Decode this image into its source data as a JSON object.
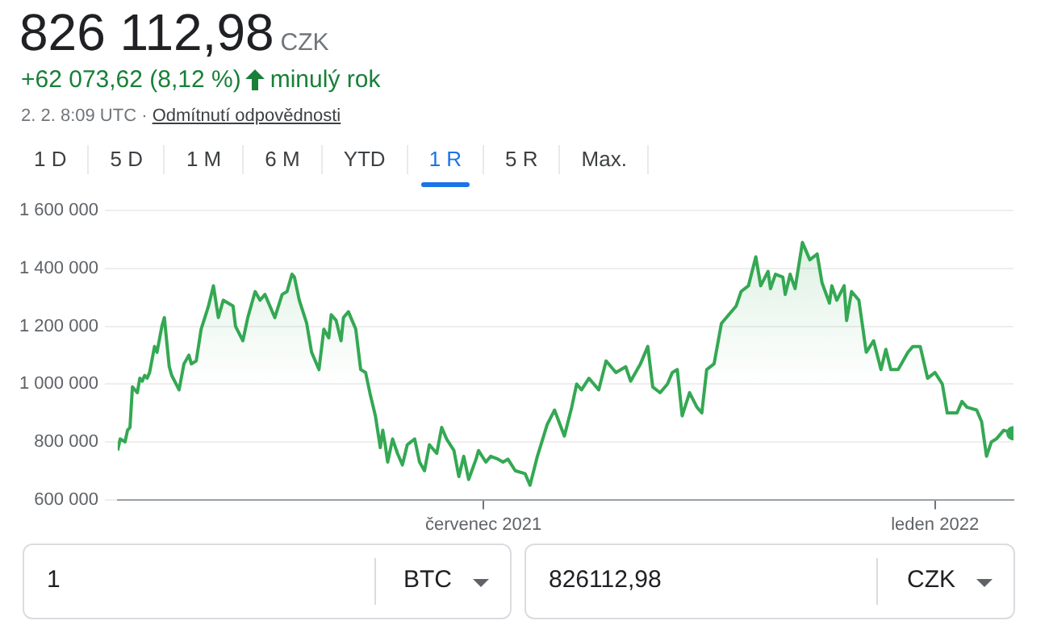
{
  "chart_data": {
    "type": "area",
    "title": "826 112,98",
    "subtitle": "+62 073,62 (8,12 %)",
    "annotations": [
      "CZK",
      "minulý rok",
      "2. 2. 8:09 UTC ·",
      "Odmítnutí odpovědnosti",
      "1 D",
      "5 D",
      "1 M",
      "6 M",
      "YTD",
      "1 R",
      "5 R",
      "Max.",
      "1",
      "BTC",
      "826112,98",
      "CZK"
    ],
    "x": [
      "2021-02-02",
      "2021-02-03",
      "2021-02-05",
      "2021-02-06",
      "2021-02-07",
      "2021-02-08",
      "2021-02-10",
      "2021-02-11",
      "2021-02-12",
      "2021-02-13",
      "2021-02-14",
      "2021-02-15",
      "2021-02-17",
      "2021-02-18",
      "2021-02-20",
      "2021-02-21",
      "2021-02-23",
      "2021-02-24",
      "2021-02-27",
      "2021-03-01",
      "2021-03-03",
      "2021-03-04",
      "2021-03-06",
      "2021-03-08",
      "2021-03-11",
      "2021-03-13",
      "2021-03-15",
      "2021-03-17",
      "2021-03-21",
      "2021-03-22",
      "2021-03-25",
      "2021-03-27",
      "2021-03-30",
      "2021-04-01",
      "2021-04-03",
      "2021-04-07",
      "2021-04-10",
      "2021-04-12",
      "2021-04-14",
      "2021-04-15",
      "2021-04-17",
      "2021-04-20",
      "2021-04-22",
      "2021-04-25",
      "2021-04-27",
      "2021-04-29",
      "2021-04-30",
      "2021-05-02",
      "2021-05-04",
      "2021-05-05",
      "2021-05-07",
      "2021-05-10",
      "2021-05-12",
      "2021-05-14",
      "2021-05-16",
      "2021-05-18",
      "2021-05-20",
      "2021-05-21",
      "2021-05-22",
      "2021-05-23",
      "2021-05-25",
      "2021-05-27",
      "2021-05-29",
      "2021-05-31",
      "2021-06-03",
      "2021-06-05",
      "2021-06-07",
      "2021-06-09",
      "2021-06-12",
      "2021-06-14",
      "2021-06-16",
      "2021-06-19",
      "2021-06-21",
      "2021-06-23",
      "2021-06-25",
      "2021-06-28",
      "2021-06-29",
      "2021-07-02",
      "2021-07-04",
      "2021-07-07",
      "2021-07-09",
      "2021-07-11",
      "2021-07-14",
      "2021-07-18",
      "2021-07-20",
      "2021-07-23",
      "2021-07-27",
      "2021-07-30",
      "2021-08-03",
      "2021-08-06",
      "2021-08-08",
      "2021-08-10",
      "2021-08-13",
      "2021-08-17",
      "2021-08-20",
      "2021-08-24",
      "2021-08-28",
      "2021-08-30",
      "2021-09-03",
      "2021-09-06",
      "2021-09-08",
      "2021-09-11",
      "2021-09-14",
      "2021-09-16",
      "2021-09-18",
      "2021-09-20",
      "2021-09-23",
      "2021-09-26",
      "2021-09-28",
      "2021-09-30",
      "2021-10-03",
      "2021-10-06",
      "2021-10-09",
      "2021-10-12",
      "2021-10-14",
      "2021-10-17",
      "2021-10-20",
      "2021-10-22",
      "2021-10-25",
      "2021-10-26",
      "2021-10-28",
      "2021-10-31",
      "2021-11-01",
      "2021-11-03",
      "2021-11-05",
      "2021-11-08",
      "2021-11-11",
      "2021-11-14",
      "2021-11-16",
      "2021-11-19",
      "2021-11-20",
      "2021-11-22",
      "2021-11-25",
      "2021-11-26",
      "2021-11-28",
      "2021-12-01",
      "2021-12-04",
      "2021-12-07",
      "2021-12-10",
      "2021-12-12",
      "2021-12-14",
      "2021-12-17",
      "2021-12-21",
      "2021-12-23",
      "2021-12-26",
      "2021-12-29",
      "2022-01-01",
      "2022-01-04",
      "2022-01-06",
      "2022-01-10",
      "2022-01-12",
      "2022-01-14",
      "2022-01-18",
      "2022-01-20",
      "2022-01-22",
      "2022-01-24",
      "2022-01-26",
      "2022-01-29",
      "2022-02-02"
    ],
    "series": [
      {
        "color": "#34a853",
        "values": [
          770000,
          810000,
          800000,
          840000,
          850000,
          990000,
          970000,
          1020000,
          1010000,
          1030000,
          1020000,
          1040000,
          1130000,
          1110000,
          1200000,
          1230000,
          1060000,
          1030000,
          980000,
          1070000,
          1100000,
          1070000,
          1080000,
          1190000,
          1270000,
          1340000,
          1230000,
          1290000,
          1270000,
          1200000,
          1150000,
          1230000,
          1320000,
          1290000,
          1310000,
          1230000,
          1310000,
          1320000,
          1380000,
          1370000,
          1290000,
          1210000,
          1110000,
          1050000,
          1190000,
          1160000,
          1240000,
          1220000,
          1150000,
          1230000,
          1250000,
          1190000,
          1050000,
          1040000,
          960000,
          890000,
          780000,
          840000,
          790000,
          730000,
          810000,
          760000,
          720000,
          790000,
          810000,
          730000,
          700000,
          790000,
          760000,
          850000,
          810000,
          770000,
          680000,
          750000,
          670000,
          740000,
          770000,
          730000,
          750000,
          740000,
          730000,
          740000,
          700000,
          690000,
          650000,
          750000,
          860000,
          910000,
          820000,
          920000,
          1000000,
          980000,
          1020000,
          980000,
          1080000,
          1040000,
          1060000,
          1010000,
          1070000,
          1130000,
          990000,
          970000,
          1000000,
          1040000,
          1050000,
          890000,
          970000,
          920000,
          900000,
          1050000,
          1070000,
          1210000,
          1240000,
          1270000,
          1320000,
          1340000,
          1440000,
          1340000,
          1390000,
          1330000,
          1380000,
          1370000,
          1310000,
          1380000,
          1330000,
          1490000,
          1430000,
          1450000,
          1350000,
          1280000,
          1340000,
          1290000,
          1340000,
          1220000,
          1320000,
          1290000,
          1110000,
          1150000,
          1050000,
          1120000,
          1050000,
          1050000,
          1110000,
          1130000,
          1130000,
          1020000,
          1040000,
          1000000,
          900000,
          900000,
          940000,
          920000,
          910000,
          870000,
          750000,
          800000,
          810000,
          840000,
          830000
        ]
      }
    ],
    "xlim": [
      "2021-02-02",
      "2022-02-02"
    ],
    "xticks": [
      {
        "value": "2021-07-01",
        "label": "červenec 2021"
      },
      {
        "value": "2022-01-01",
        "label": "leden 2022"
      }
    ],
    "ylim": [
      600000,
      1600000
    ],
    "yticks": [
      {
        "value": 600000,
        "label": "600 000"
      },
      {
        "value": 800000,
        "label": "800 000"
      },
      {
        "value": 1000000,
        "label": "1 000 000"
      },
      {
        "value": 1200000,
        "label": "1 200 000"
      },
      {
        "value": 1400000,
        "label": "1 400 000"
      },
      {
        "value": 1600000,
        "label": "1 600 000"
      }
    ],
    "grid": "y",
    "legend": false,
    "marker": "none",
    "line_style": "solid"
  }
}
